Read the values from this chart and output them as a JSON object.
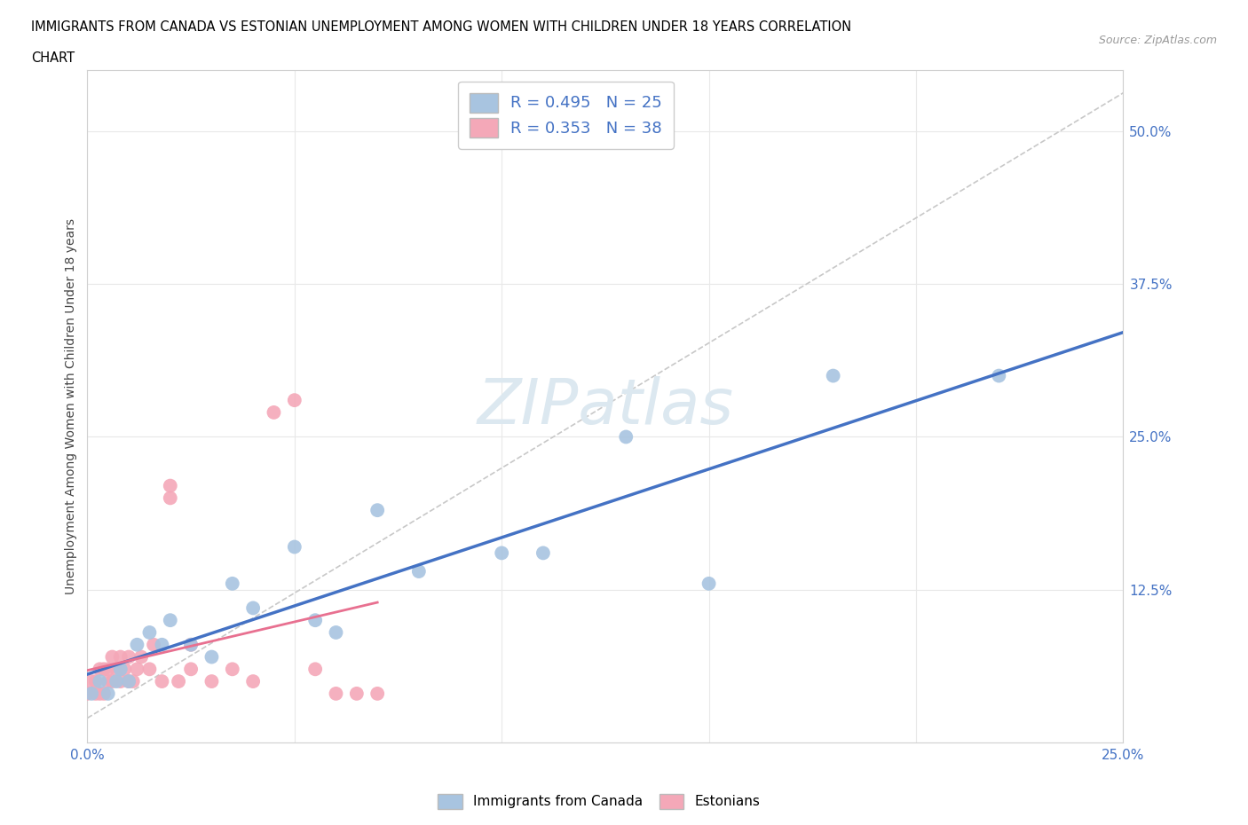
{
  "title_line1": "IMMIGRANTS FROM CANADA VS ESTONIAN UNEMPLOYMENT AMONG WOMEN WITH CHILDREN UNDER 18 YEARS CORRELATION",
  "title_line2": "CHART",
  "source_text": "Source: ZipAtlas.com",
  "ylabel": "Unemployment Among Women with Children Under 18 years",
  "xlim": [
    0.0,
    0.25
  ],
  "ylim": [
    0.0,
    0.55
  ],
  "xticks": [
    0.0,
    0.05,
    0.1,
    0.15,
    0.2,
    0.25
  ],
  "xticklabels": [
    "0.0%",
    "",
    "",
    "",
    "",
    "25.0%"
  ],
  "yticks": [
    0.0,
    0.125,
    0.25,
    0.375,
    0.5
  ],
  "yticklabels": [
    "",
    "12.5%",
    "25.0%",
    "37.5%",
    "50.0%"
  ],
  "canada_scatter_x": [
    0.001,
    0.003,
    0.005,
    0.007,
    0.008,
    0.01,
    0.012,
    0.015,
    0.018,
    0.02,
    0.025,
    0.03,
    0.035,
    0.04,
    0.05,
    0.055,
    0.06,
    0.07,
    0.08,
    0.1,
    0.11,
    0.13,
    0.15,
    0.18,
    0.22
  ],
  "canada_scatter_y": [
    0.04,
    0.05,
    0.04,
    0.05,
    0.06,
    0.05,
    0.08,
    0.09,
    0.08,
    0.1,
    0.08,
    0.07,
    0.13,
    0.11,
    0.16,
    0.1,
    0.09,
    0.19,
    0.14,
    0.155,
    0.155,
    0.25,
    0.13,
    0.3,
    0.3
  ],
  "estonian_scatter_x": [
    0.0,
    0.001,
    0.002,
    0.002,
    0.003,
    0.003,
    0.004,
    0.004,
    0.005,
    0.005,
    0.006,
    0.006,
    0.007,
    0.008,
    0.008,
    0.009,
    0.01,
    0.01,
    0.011,
    0.012,
    0.013,
    0.015,
    0.016,
    0.018,
    0.02,
    0.02,
    0.022,
    0.025,
    0.025,
    0.03,
    0.035,
    0.04,
    0.045,
    0.05,
    0.055,
    0.06,
    0.065,
    0.07
  ],
  "estonian_scatter_y": [
    0.04,
    0.05,
    0.04,
    0.05,
    0.04,
    0.06,
    0.04,
    0.06,
    0.05,
    0.06,
    0.05,
    0.07,
    0.06,
    0.05,
    0.07,
    0.06,
    0.05,
    0.07,
    0.05,
    0.06,
    0.07,
    0.06,
    0.08,
    0.05,
    0.21,
    0.2,
    0.05,
    0.06,
    0.08,
    0.05,
    0.06,
    0.05,
    0.27,
    0.28,
    0.06,
    0.04,
    0.04,
    0.04
  ],
  "canada_color": "#a8c4e0",
  "estonian_color": "#f4a8b8",
  "canada_line_color": "#4472c4",
  "estonian_line_color": "#e87090",
  "background_color": "#ffffff",
  "grid_color": "#e8e8e8",
  "watermark_color": "#dce8f0",
  "R_canada": 0.495,
  "N_canada": 25,
  "R_estonian": 0.353,
  "N_estonian": 38
}
